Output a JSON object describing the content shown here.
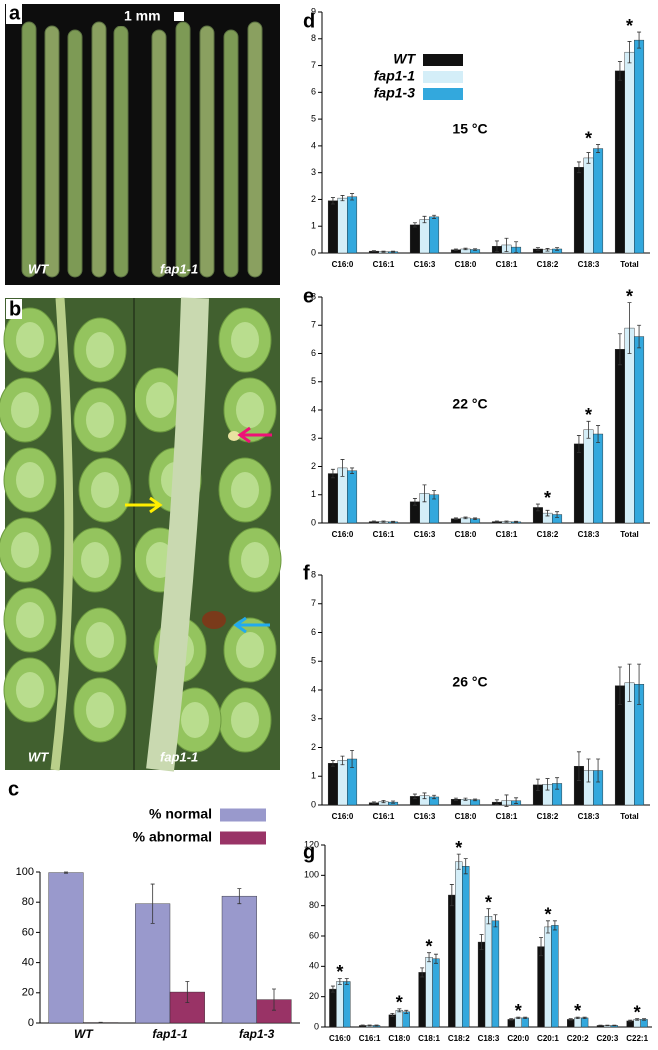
{
  "photos": [
    {
      "label": "a",
      "scale_bar": "1 mm",
      "captions": [
        "WT",
        "fap1-1"
      ]
    },
    {
      "label": "b",
      "captions": [
        "WT",
        "fap1-1"
      ]
    }
  ],
  "chart_data": [
    {
      "type": "bar",
      "label": "c",
      "categories": [
        "WT",
        "fap1-1",
        "fap1-3"
      ],
      "series": [
        {
          "name": "% normal",
          "color": "#9999cc",
          "values": [
            99.6,
            79,
            84
          ],
          "errors": [
            0.4,
            13,
            5
          ]
        },
        {
          "name": "% abnormal",
          "color": "#993366",
          "values": [
            0.3,
            20.5,
            15.5
          ],
          "errors": [
            0.2,
            7,
            7
          ]
        }
      ],
      "ylim": [
        0,
        100
      ],
      "yticks": [
        0,
        20,
        40,
        60,
        80,
        100
      ],
      "legend": "top-right"
    },
    {
      "type": "bar",
      "label": "d",
      "subtitle": "15 °C",
      "categories": [
        "C16:0",
        "C16:1",
        "C16:3",
        "C18:0",
        "C18:1",
        "C18:2",
        "C18:3",
        "Total"
      ],
      "series": [
        {
          "name": "WT",
          "color": "#111111",
          "values": [
            1.95,
            0.07,
            1.05,
            0.12,
            0.25,
            0.15,
            3.2,
            6.8
          ],
          "errors": [
            0.12,
            0.02,
            0.08,
            0.03,
            0.2,
            0.05,
            0.2,
            0.35
          ]
        },
        {
          "name": "fap1-1",
          "color": "#d4eef8",
          "values": [
            2.05,
            0.05,
            1.25,
            0.15,
            0.3,
            0.12,
            3.55,
            7.5
          ],
          "errors": [
            0.1,
            0.02,
            0.12,
            0.03,
            0.25,
            0.05,
            0.2,
            0.4
          ]
        },
        {
          "name": "fap1-3",
          "color": "#33a8dd",
          "values": [
            2.1,
            0.05,
            1.35,
            0.13,
            0.22,
            0.15,
            3.9,
            7.95
          ],
          "errors": [
            0.12,
            0.02,
            0.06,
            0.03,
            0.2,
            0.05,
            0.15,
            0.3
          ]
        }
      ],
      "ylim": [
        0,
        9
      ],
      "yticks": [
        0,
        1,
        2,
        3,
        4,
        5,
        6,
        7,
        8,
        9
      ],
      "legend": "top-left",
      "annotations": [
        {
          "text": "*",
          "category": "C18:3"
        },
        {
          "text": "*",
          "category": "Total"
        }
      ]
    },
    {
      "type": "bar",
      "label": "e",
      "subtitle": "22 °C",
      "categories": [
        "C16:0",
        "C16:1",
        "C16:3",
        "C18:0",
        "C18:1",
        "C18:2",
        "C18:3",
        "Total"
      ],
      "series": [
        {
          "color": "#111111",
          "values": [
            1.75,
            0.05,
            0.75,
            0.15,
            0.05,
            0.55,
            2.8,
            6.15
          ],
          "errors": [
            0.15,
            0.02,
            0.12,
            0.03,
            0.02,
            0.12,
            0.3,
            0.55
          ]
        },
        {
          "color": "#d4eef8",
          "values": [
            1.95,
            0.05,
            1.05,
            0.18,
            0.05,
            0.35,
            3.3,
            6.9
          ],
          "errors": [
            0.3,
            0.02,
            0.3,
            0.03,
            0.02,
            0.1,
            0.3,
            0.9
          ]
        },
        {
          "color": "#33a8dd",
          "values": [
            1.85,
            0.04,
            1.0,
            0.15,
            0.04,
            0.3,
            3.15,
            6.6
          ],
          "errors": [
            0.1,
            0.02,
            0.15,
            0.03,
            0.02,
            0.1,
            0.3,
            0.4
          ]
        }
      ],
      "ylim": [
        0,
        8
      ],
      "yticks": [
        0,
        1,
        2,
        3,
        4,
        5,
        6,
        7,
        8
      ],
      "annotations": [
        {
          "text": "*",
          "category": "C18:2"
        },
        {
          "text": "*",
          "category": "C18:3"
        },
        {
          "text": "*",
          "category": "Total"
        }
      ]
    },
    {
      "type": "bar",
      "label": "f",
      "subtitle": "26 °C",
      "categories": [
        "C16:0",
        "C16:1",
        "C16:3",
        "C18:0",
        "C18:1",
        "C18:2",
        "C18:3",
        "Total"
      ],
      "series": [
        {
          "color": "#111111",
          "values": [
            1.45,
            0.08,
            0.3,
            0.2,
            0.1,
            0.7,
            1.35,
            4.15
          ],
          "errors": [
            0.1,
            0.03,
            0.08,
            0.04,
            0.08,
            0.2,
            0.5,
            0.65
          ]
        },
        {
          "color": "#d4eef8",
          "values": [
            1.55,
            0.12,
            0.32,
            0.2,
            0.15,
            0.72,
            1.2,
            4.25
          ],
          "errors": [
            0.15,
            0.04,
            0.1,
            0.04,
            0.2,
            0.2,
            0.4,
            0.65
          ]
        },
        {
          "color": "#33a8dd",
          "values": [
            1.6,
            0.1,
            0.28,
            0.18,
            0.15,
            0.75,
            1.2,
            4.2
          ],
          "errors": [
            0.3,
            0.04,
            0.06,
            0.03,
            0.1,
            0.2,
            0.4,
            0.7
          ]
        }
      ],
      "ylim": [
        0,
        8
      ],
      "yticks": [
        0,
        1,
        2,
        3,
        4,
        5,
        6,
        7,
        8
      ]
    },
    {
      "type": "bar",
      "label": "g",
      "categories": [
        "C16:0",
        "C16:1",
        "C18:0",
        "C18:1",
        "C18:2",
        "C18:3",
        "C20:0",
        "C20:1",
        "C20:2",
        "C20:3",
        "C22:1"
      ],
      "series": [
        {
          "color": "#111111",
          "values": [
            25,
            1,
            8,
            36,
            87,
            56,
            5,
            53,
            5,
            1,
            4
          ],
          "errors": [
            2,
            0.3,
            1,
            3,
            7,
            5,
            0.5,
            6,
            0.5,
            0.2,
            0.5
          ]
        },
        {
          "color": "#d4eef8",
          "values": [
            30,
            1,
            11,
            46,
            109,
            73,
            6,
            66,
            6,
            1,
            5
          ],
          "errors": [
            2,
            0.3,
            1,
            3,
            5,
            5,
            0.5,
            4,
            0.5,
            0.2,
            0.5
          ]
        },
        {
          "color": "#33a8dd",
          "values": [
            30,
            1,
            10,
            45,
            106,
            70,
            6,
            67,
            6,
            1,
            5
          ],
          "errors": [
            2,
            0.3,
            1,
            3,
            5,
            4,
            0.5,
            3,
            0.5,
            0.2,
            0.5
          ]
        }
      ],
      "ylim": [
        0,
        120
      ],
      "yticks": [
        0,
        20,
        40,
        60,
        80,
        100,
        120
      ],
      "annotations": [
        {
          "text": "*",
          "category": "C16:0"
        },
        {
          "text": "*",
          "category": "C18:0"
        },
        {
          "text": "*",
          "category": "C18:1"
        },
        {
          "text": "*",
          "category": "C18:2"
        },
        {
          "text": "*",
          "category": "C18:3"
        },
        {
          "text": "*",
          "category": "C20:0"
        },
        {
          "text": "*",
          "category": "C20:1"
        },
        {
          "text": "*",
          "category": "C20:2"
        },
        {
          "text": "*",
          "category": "C22:1"
        }
      ]
    }
  ]
}
